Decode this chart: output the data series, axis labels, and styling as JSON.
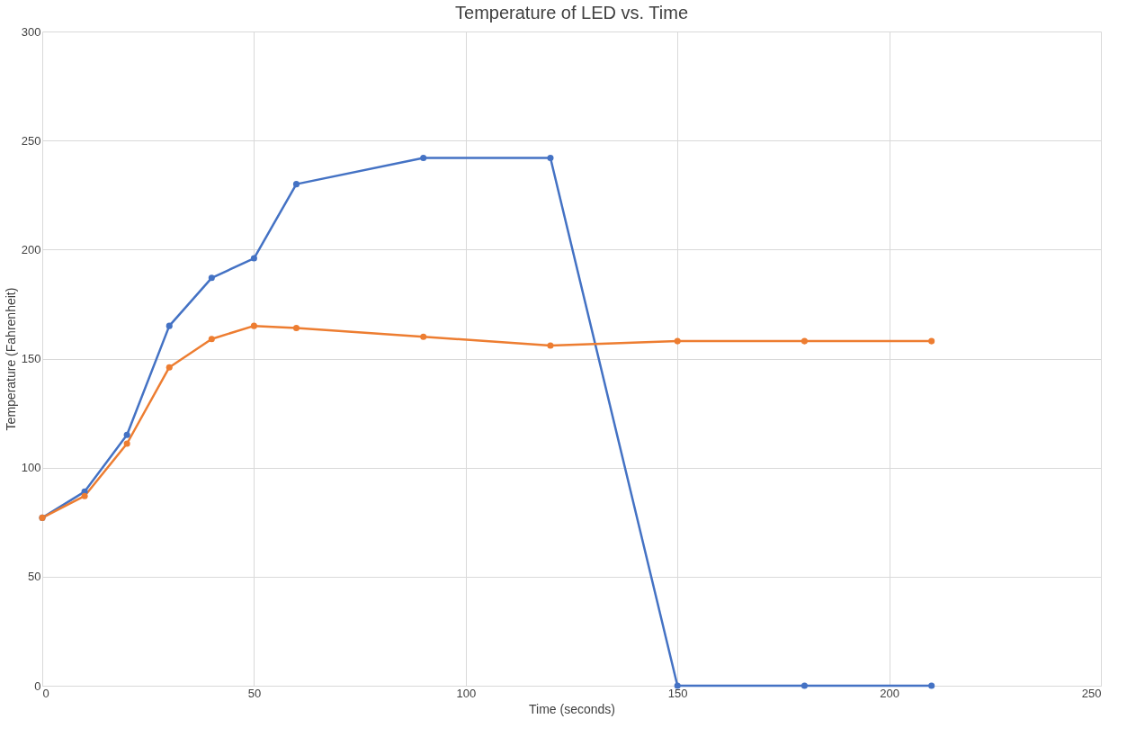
{
  "chart_data": {
    "type": "line",
    "title": "Temperature of LED vs. Time",
    "xlabel": "Time (seconds)",
    "ylabel": "Temperature (Fahrenheit)",
    "x": [
      0,
      10,
      20,
      30,
      40,
      50,
      60,
      90,
      120,
      150,
      180,
      210
    ],
    "series": [
      {
        "color": "#4472c4",
        "values": [
          77,
          89,
          115,
          165,
          187,
          196,
          230,
          242,
          242,
          0,
          0,
          0
        ]
      },
      {
        "color": "#ed7d31",
        "values": [
          77,
          87,
          111,
          146,
          159,
          165,
          164,
          160,
          156,
          158,
          158,
          158
        ]
      }
    ],
    "xlim": [
      0,
      250
    ],
    "xticks": [
      0,
      50,
      100,
      150,
      200,
      250
    ],
    "ylim": [
      0,
      300
    ],
    "yticks": [
      0,
      50,
      100,
      150,
      200,
      250,
      300
    ],
    "grid": true,
    "legend": false,
    "marker": "circle",
    "line_style": "solid"
  }
}
